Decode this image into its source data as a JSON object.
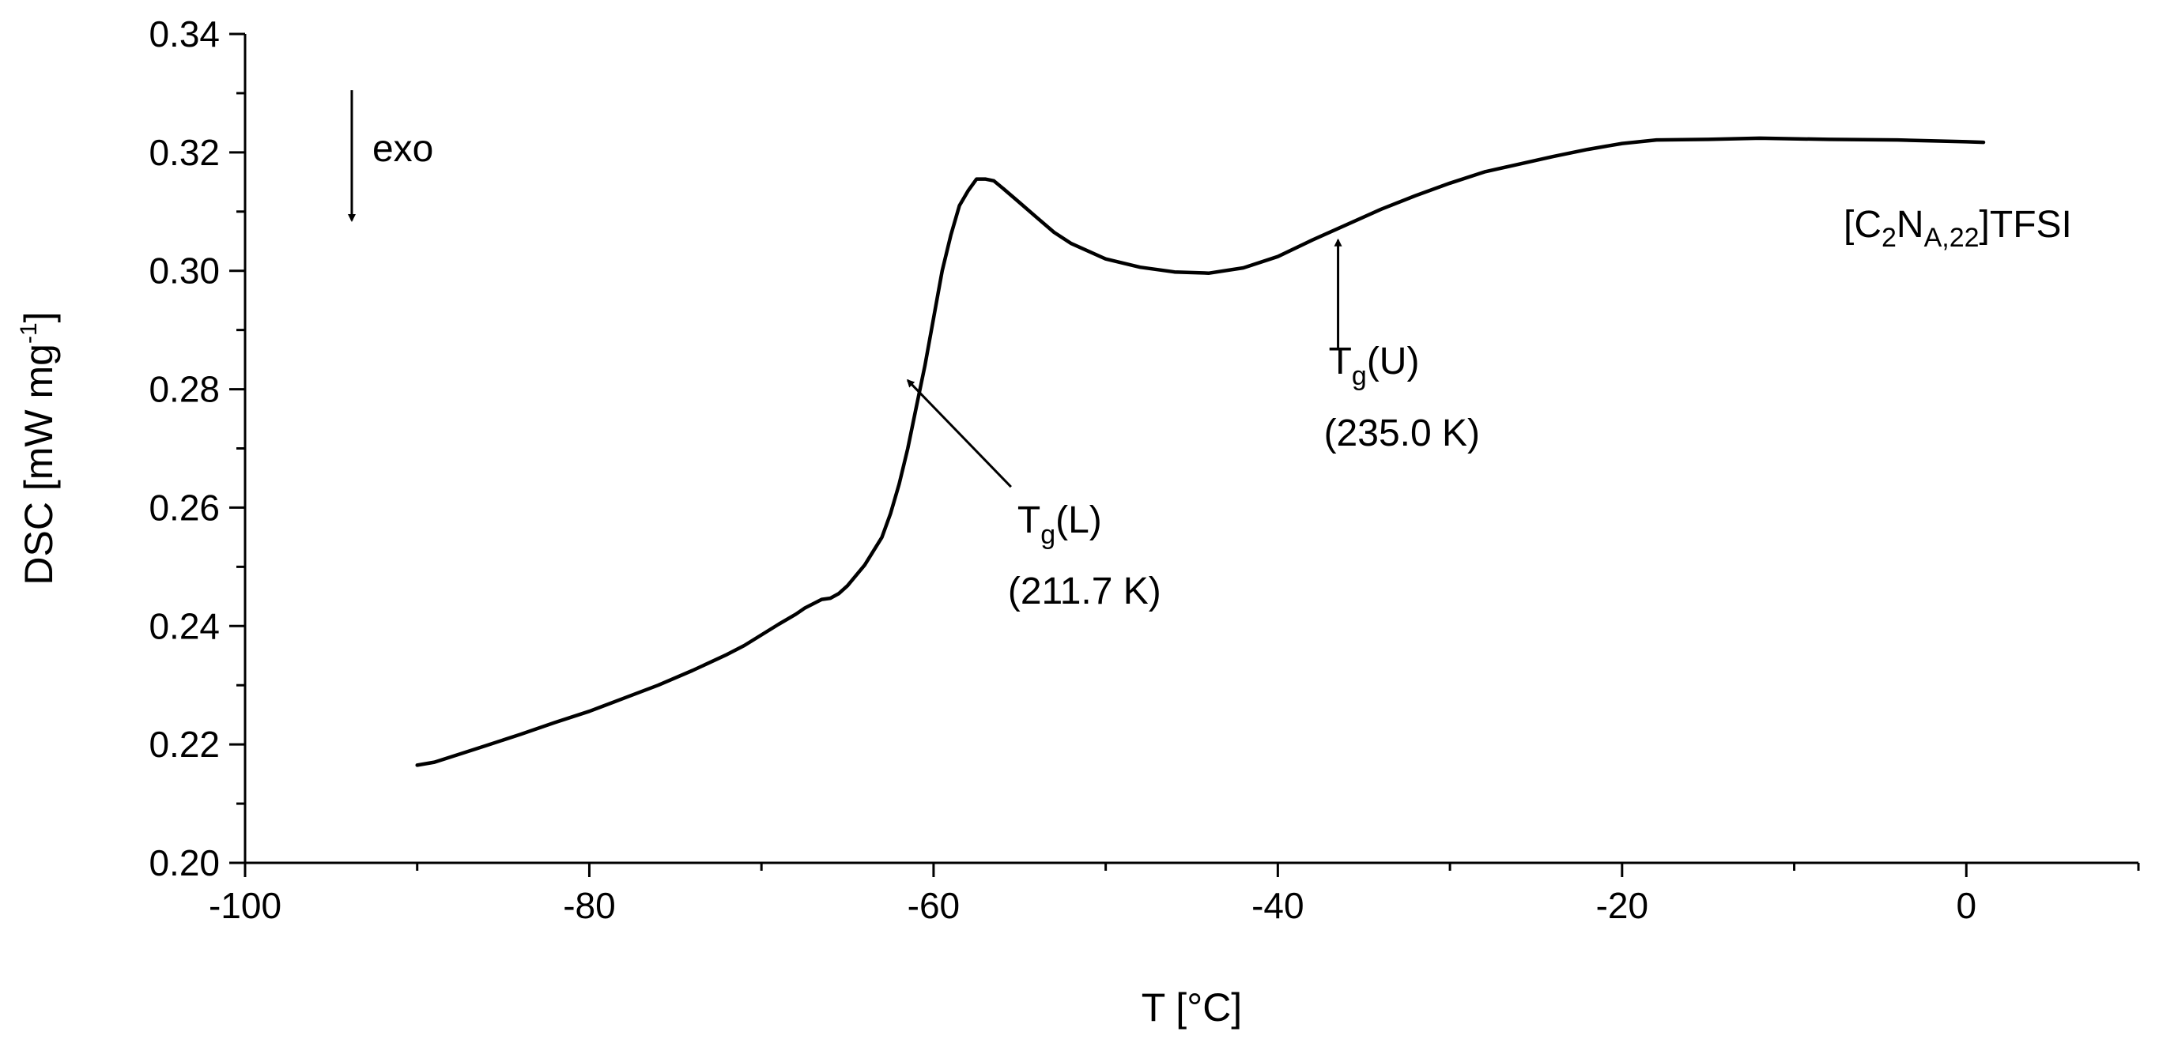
{
  "chart_data": {
    "type": "line",
    "title": "",
    "xlabel": "T [°C]",
    "ylabel": {
      "main": "DSC [mW mg",
      "superscript": "-1",
      "close": "]"
    },
    "xlim": [
      -100,
      10
    ],
    "ylim": [
      0.2,
      0.34
    ],
    "x_ticks": [
      -100,
      -80,
      -60,
      -40,
      -20,
      0
    ],
    "x_tick_labels": [
      "-100",
      "-80",
      "-60",
      "-40",
      "-20",
      "0"
    ],
    "y_ticks": [
      0.2,
      0.22,
      0.24,
      0.26,
      0.28,
      0.3,
      0.32,
      0.34
    ],
    "y_tick_labels": [
      "0.20",
      "0.22",
      "0.24",
      "0.26",
      "0.28",
      "0.30",
      "0.32",
      "0.34"
    ],
    "grid": false,
    "series": [
      {
        "name": "[C2NA,22]TFSI",
        "x": [
          -90.0,
          -89.0,
          -87.5,
          -86.0,
          -84.0,
          -82.0,
          -80.0,
          -78.0,
          -76.0,
          -74.0,
          -72.0,
          -71.0,
          -70.0,
          -69.0,
          -68.0,
          -67.5,
          -66.5,
          -66.0,
          -65.5,
          -65.0,
          -64.0,
          -63.0,
          -62.5,
          -62.0,
          -61.5,
          -61.0,
          -60.5,
          -60.0,
          -59.5,
          -59.0,
          -58.5,
          -58.0,
          -57.5,
          -57.0,
          -56.5,
          -56.0,
          -55.0,
          -54.0,
          -53.0,
          -52.0,
          -50.0,
          -48.0,
          -46.0,
          -44.0,
          -42.0,
          -40.0,
          -38.0,
          -36.0,
          -34.0,
          -32.0,
          -30.0,
          -28.0,
          -26.0,
          -24.0,
          -22.0,
          -20.0,
          -18.0,
          -15.0,
          -12.0,
          -8.0,
          -4.0,
          0.0,
          1.0
        ],
        "values": [
          0.2165,
          0.217,
          0.2184,
          0.2198,
          0.2217,
          0.2237,
          0.2256,
          0.2278,
          0.23,
          0.2325,
          0.2352,
          0.2367,
          0.2385,
          0.2403,
          0.242,
          0.243,
          0.2445,
          0.2447,
          0.2455,
          0.2468,
          0.2503,
          0.255,
          0.259,
          0.264,
          0.27,
          0.277,
          0.284,
          0.292,
          0.3,
          0.306,
          0.311,
          0.3135,
          0.3155,
          0.3155,
          0.3152,
          0.314,
          0.3115,
          0.309,
          0.3065,
          0.3046,
          0.302,
          0.3006,
          0.2998,
          0.2996,
          0.3005,
          0.3024,
          0.3052,
          0.3078,
          0.3104,
          0.3127,
          0.3148,
          0.3167,
          0.318,
          0.3193,
          0.3205,
          0.3215,
          0.3221,
          0.3222,
          0.3224,
          0.3222,
          0.3221,
          0.3218,
          0.3217
        ]
      }
    ],
    "annotations": {
      "exo_label": "exo",
      "sample_label": {
        "open": "[C",
        "sub1": "2",
        "mid": "N",
        "sub2": "A,22",
        "close": "]TFSI"
      },
      "tg_lower": {
        "symbol": "T",
        "subscript": "g",
        "label": "(L)",
        "value": "(211.7 K)",
        "arrow_x": -61.5,
        "arrow_y": 0.2815,
        "tail_x": -55.5,
        "tail_y": 0.2635
      },
      "tg_upper": {
        "symbol": "T",
        "subscript": "g",
        "label": "(U)",
        "value": "(235.0 K)",
        "arrow_x": -36.5,
        "arrow_y": 0.3052,
        "tail_x": -36.5,
        "tail_y": 0.287
      },
      "exo_arrow": {
        "x": -93.8,
        "y_start": 0.3305,
        "y_end": 0.3085
      }
    }
  }
}
